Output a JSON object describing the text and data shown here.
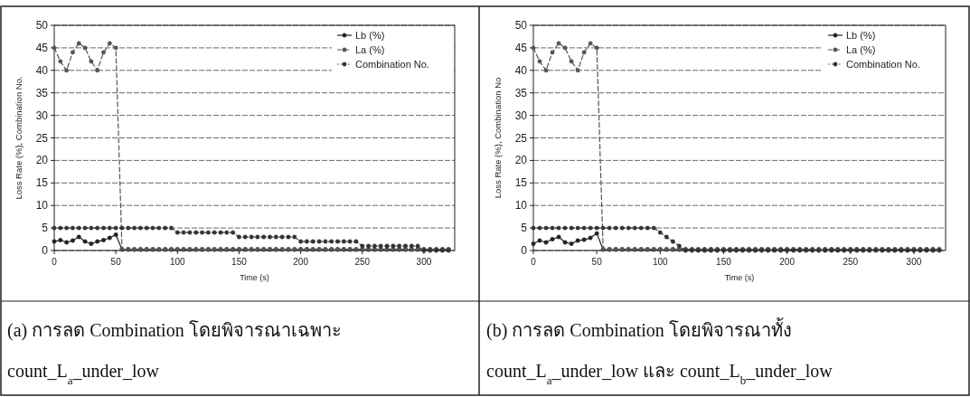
{
  "chart_data": [
    {
      "type": "line",
      "xlabel": "Time (s)",
      "ylabel": "Loss Rate (%), Combination No.",
      "xlim": [
        0,
        325
      ],
      "ylim": [
        0,
        50
      ],
      "xticks": [
        0,
        50,
        100,
        150,
        200,
        250,
        300
      ],
      "yticks": [
        0,
        5,
        10,
        15,
        20,
        25,
        30,
        35,
        40,
        45,
        50
      ],
      "grid": "y",
      "legend": "top right",
      "marker": "circle",
      "x": [
        0,
        5,
        10,
        15,
        20,
        25,
        30,
        35,
        40,
        45,
        50,
        55,
        60,
        65,
        70,
        75,
        80,
        85,
        90,
        95,
        100,
        105,
        110,
        115,
        120,
        125,
        130,
        135,
        140,
        145,
        150,
        155,
        160,
        165,
        170,
        175,
        180,
        185,
        190,
        195,
        200,
        205,
        210,
        215,
        220,
        225,
        230,
        235,
        240,
        245,
        250,
        255,
        260,
        265,
        270,
        275,
        280,
        285,
        290,
        295,
        300,
        305,
        310,
        315,
        320
      ],
      "series": [
        {
          "name": "Lb (%)",
          "color": "#222222",
          "line_style": "solid",
          "values": [
            2,
            2.3,
            1.8,
            2.2,
            3,
            2,
            1.5,
            2,
            2.3,
            2.8,
            3.5,
            0.2,
            0.2,
            0.2,
            0.2,
            0.2,
            0.2,
            0.2,
            0.2,
            0.2,
            0.2,
            0.2,
            0.2,
            0.2,
            0.2,
            0.2,
            0.2,
            0.2,
            0.2,
            0.2,
            0.2,
            0.2,
            0.2,
            0.2,
            0.2,
            0.2,
            0.2,
            0.2,
            0.2,
            0.2,
            0.2,
            0.2,
            0.2,
            0.2,
            0.2,
            0.2,
            0.2,
            0.2,
            0.2,
            0.2,
            0.2,
            0.2,
            0.2,
            0.2,
            0.2,
            0.2,
            0.2,
            0.2,
            0.2,
            0.2,
            0.2,
            0.2,
            0.2,
            0.2,
            0.2
          ]
        },
        {
          "name": "La (%)",
          "color": "#555555",
          "line_style": "dashed",
          "values": [
            45,
            42,
            40,
            44,
            46,
            45,
            42,
            40,
            44,
            46,
            45,
            0.3,
            0.3,
            0.3,
            0.3,
            0.3,
            0.3,
            0.3,
            0.3,
            0.3,
            0.3,
            0.3,
            0.3,
            0.3,
            0.3,
            0.3,
            0.3,
            0.3,
            0.3,
            0.3,
            0.3,
            0.3,
            0.3,
            0.3,
            0.3,
            0.3,
            0.3,
            0.3,
            0.3,
            0.3,
            0.3,
            0.3,
            0.3,
            0.3,
            0.3,
            0.3,
            0.3,
            0.3,
            0.3,
            0.3,
            0.3,
            0.3,
            0.3,
            0.3,
            0.3,
            0.3,
            0.3,
            0.3,
            0.3,
            0.3,
            0.3,
            0.3,
            0.3,
            0.3,
            0.3
          ]
        },
        {
          "name": "Combination No.",
          "color": "#333333",
          "line_style": "dotted",
          "values": [
            5,
            5,
            5,
            5,
            5,
            5,
            5,
            5,
            5,
            5,
            5,
            5,
            5,
            5,
            5,
            5,
            5,
            5,
            5,
            5,
            4,
            4,
            4,
            4,
            4,
            4,
            4,
            4,
            4,
            4,
            3,
            3,
            3,
            3,
            3,
            3,
            3,
            3,
            3,
            3,
            2,
            2,
            2,
            2,
            2,
            2,
            2,
            2,
            2,
            2,
            1,
            1,
            1,
            1,
            1,
            1,
            1,
            1,
            1,
            1,
            0,
            0,
            0,
            0,
            0
          ]
        }
      ],
      "annotations": [
        "(a) การลด Combination โดยพิจารณาเฉพาะ",
        "count_L$_{a}$_under_low"
      ]
    },
    {
      "type": "line",
      "xlabel": "Time (s)",
      "ylabel": "Loss Rate (%), Combination No",
      "xlim": [
        0,
        325
      ],
      "ylim": [
        0,
        50
      ],
      "xticks": [
        0,
        50,
        100,
        150,
        200,
        250,
        300
      ],
      "yticks": [
        0,
        5,
        10,
        15,
        20,
        25,
        30,
        35,
        40,
        45,
        50
      ],
      "grid": "y",
      "legend": "top right",
      "marker": "circle",
      "x": [
        0,
        5,
        10,
        15,
        20,
        25,
        30,
        35,
        40,
        45,
        50,
        55,
        60,
        65,
        70,
        75,
        80,
        85,
        90,
        95,
        100,
        105,
        110,
        115,
        120,
        125,
        130,
        135,
        140,
        145,
        150,
        155,
        160,
        165,
        170,
        175,
        180,
        185,
        190,
        195,
        200,
        205,
        210,
        215,
        220,
        225,
        230,
        235,
        240,
        245,
        250,
        255,
        260,
        265,
        270,
        275,
        280,
        285,
        290,
        295,
        300,
        305,
        310,
        315,
        320
      ],
      "series": [
        {
          "name": "Lb (%)",
          "color": "#222222",
          "line_style": "solid",
          "values": [
            1.5,
            2.2,
            1.8,
            2.5,
            3,
            1.8,
            1.5,
            2.2,
            2.4,
            2.8,
            3.8,
            0.2,
            0.2,
            0.2,
            0.2,
            0.2,
            0.2,
            0.2,
            0.2,
            0.2,
            0.2,
            0.2,
            0.2,
            0.2,
            0.2,
            0.2,
            0.2,
            0.2,
            0.2,
            0.2,
            0.2,
            0.2,
            0.2,
            0.2,
            0.2,
            0.2,
            0.2,
            0.2,
            0.2,
            0.2,
            0.2,
            0.2,
            0.2,
            0.2,
            0.2,
            0.2,
            0.2,
            0.2,
            0.2,
            0.2,
            0.2,
            0.2,
            0.2,
            0.2,
            0.2,
            0.2,
            0.2,
            0.2,
            0.2,
            0.2,
            0.2,
            0.2,
            0.2,
            0.2,
            0.2
          ]
        },
        {
          "name": "La (%)",
          "color": "#555555",
          "line_style": "dashed",
          "values": [
            45,
            42,
            40,
            44,
            46,
            45,
            42,
            40,
            44,
            46,
            45,
            0.3,
            0.3,
            0.3,
            0.3,
            0.3,
            0.3,
            0.3,
            0.3,
            0.3,
            0.3,
            0.3,
            0.3,
            0.3,
            0.3,
            0.3,
            0.3,
            0.3,
            0.3,
            0.3,
            0.3,
            0.3,
            0.3,
            0.3,
            0.3,
            0.3,
            0.3,
            0.3,
            0.3,
            0.3,
            0.3,
            0.3,
            0.3,
            0.3,
            0.3,
            0.3,
            0.3,
            0.3,
            0.3,
            0.3,
            0.3,
            0.3,
            0.3,
            0.3,
            0.3,
            0.3,
            0.3,
            0.3,
            0.3,
            0.3,
            0.3,
            0.3,
            0.3,
            0.3,
            0.3
          ]
        },
        {
          "name": "Combination No.",
          "color": "#333333",
          "line_style": "dotted",
          "values": [
            5,
            5,
            5,
            5,
            5,
            5,
            5,
            5,
            5,
            5,
            5,
            5,
            5,
            5,
            5,
            5,
            5,
            5,
            5,
            5,
            4,
            3,
            2,
            1,
            0,
            0,
            0,
            0,
            0,
            0,
            0,
            0,
            0,
            0,
            0,
            0,
            0,
            0,
            0,
            0,
            0,
            0,
            0,
            0,
            0,
            0,
            0,
            0,
            0,
            0,
            0,
            0,
            0,
            0,
            0,
            0,
            0,
            0,
            0,
            0,
            0,
            0,
            0,
            0,
            0
          ]
        }
      ],
      "annotations": [
        "(b) การลด Combination โดยพิจารณาทั้ง",
        "count_L$_{a}$_under_low และ count_L$_{b}$_under_low"
      ]
    }
  ]
}
